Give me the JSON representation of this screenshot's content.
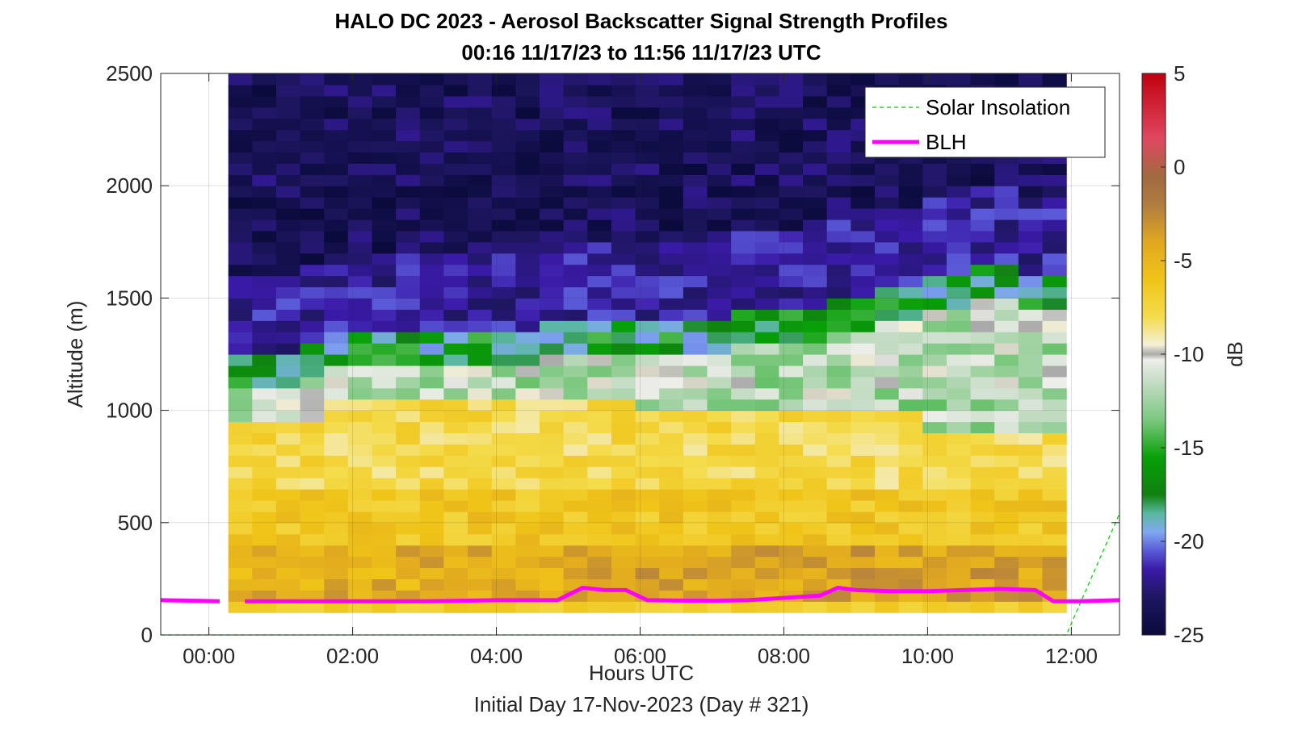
{
  "chart_data": {
    "type": "heatmap",
    "title": "HALO DC 2023 - Aerosol Backscatter Signal Strength Profiles",
    "subtitle": "00:16 11/17/23 to 11:56 11/17/23  UTC",
    "xlabel": "Hours UTC",
    "footer": "Initial Day 17-Nov-2023 (Day # 321)",
    "ylabel": "Altitude (m)",
    "colorbar_label": "dB",
    "xlim": [
      -0.67,
      12.67
    ],
    "ylim": [
      0,
      2500
    ],
    "x_ticks": [
      0,
      2,
      4,
      6,
      8,
      10,
      12
    ],
    "x_tick_labels": [
      "00:00",
      "02:00",
      "04:00",
      "06:00",
      "08:00",
      "10:00",
      "12:00"
    ],
    "y_ticks": [
      0,
      500,
      1000,
      1500,
      2000,
      2500
    ],
    "y_tick_labels": [
      "0",
      "500",
      "1000",
      "1500",
      "2000",
      "2500"
    ],
    "clim": [
      -25,
      5
    ],
    "c_ticks": [
      -25,
      -20,
      -15,
      -10,
      -5,
      0,
      5
    ],
    "c_tick_labels": [
      "-25",
      "-20",
      "-15",
      "-10",
      "-5",
      "0",
      "5"
    ],
    "grid": true,
    "legend_position": "top-right",
    "heatmap": {
      "x_start": 0.27,
      "x_end": 11.93,
      "y_start": 100,
      "y_end": 2500,
      "bin_height": 50,
      "n_columns": 35,
      "note_profile": "backscatter dB by altitude bin per profile"
    },
    "colormap": {
      "stops": [
        {
          "value": -25,
          "color": "#0a0a3c"
        },
        {
          "value": -23,
          "color": "#1e1660"
        },
        {
          "value": -21.5,
          "color": "#3a1aa8"
        },
        {
          "value": -20.5,
          "color": "#5a5ad8"
        },
        {
          "value": -19.5,
          "color": "#80a8f0"
        },
        {
          "value": -18.5,
          "color": "#5ab8a0"
        },
        {
          "value": -17.5,
          "color": "#108010"
        },
        {
          "value": -15.5,
          "color": "#08a008"
        },
        {
          "value": -13.5,
          "color": "#7cc880"
        },
        {
          "value": -11.5,
          "color": "#c4dcc4"
        },
        {
          "value": -10.3,
          "color": "#eeeeea"
        },
        {
          "value": -10,
          "color": "#aaaaaa"
        },
        {
          "value": -9.5,
          "color": "#f4f0d8"
        },
        {
          "value": -8,
          "color": "#f4dc4c"
        },
        {
          "value": -6,
          "color": "#f0c418"
        },
        {
          "value": -4,
          "color": "#e0a820"
        },
        {
          "value": -2,
          "color": "#b07c40"
        },
        {
          "value": -0.5,
          "color": "#a06a40"
        },
        {
          "value": 1.5,
          "color": "#e04860"
        },
        {
          "value": 5,
          "color": "#c00010"
        }
      ]
    },
    "series": [
      {
        "name": "Solar Insolation",
        "color": "#00cc00",
        "style": "dashed",
        "x": [
          -0.67,
          11.93,
          12.67
        ],
        "y": [
          0,
          0,
          540
        ]
      },
      {
        "name": "BLH",
        "color": "#ff00ff",
        "style": "solid",
        "x": [
          -0.67,
          0.15,
          null,
          0.5,
          1.0,
          1.5,
          2.0,
          2.5,
          3.0,
          3.5,
          4.0,
          4.5,
          4.85,
          5.2,
          5.5,
          5.8,
          6.1,
          6.5,
          7.0,
          7.5,
          8.0,
          8.5,
          8.75,
          9.0,
          9.5,
          10.0,
          10.5,
          11.0,
          11.5,
          11.75,
          12.1,
          12.67
        ],
        "y": [
          155,
          150,
          null,
          150,
          150,
          150,
          150,
          150,
          150,
          152,
          155,
          155,
          155,
          210,
          200,
          200,
          155,
          153,
          152,
          155,
          165,
          175,
          210,
          200,
          195,
          195,
          200,
          205,
          200,
          150,
          150,
          155
        ]
      }
    ]
  }
}
